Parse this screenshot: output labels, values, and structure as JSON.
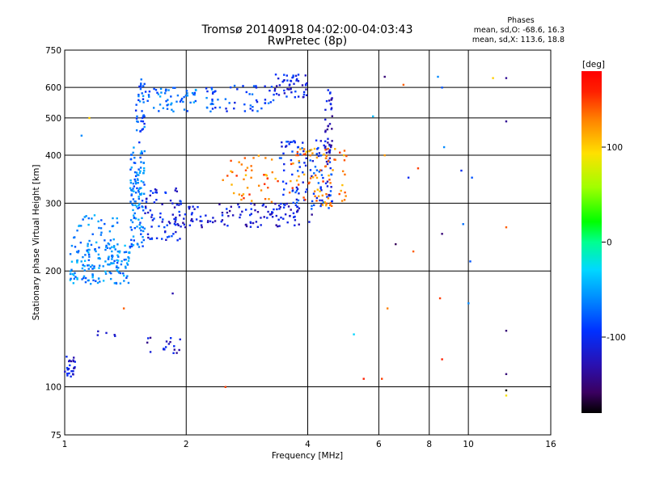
{
  "chart_data": {
    "type": "scatter",
    "title": "Tromsø 20140918 04:02:00-04:03:43",
    "subtitle": "RwPretec (8p)",
    "xlabel": "Frequency [MHz]",
    "ylabel": "Stationary phase Virtual Height [km]",
    "x_scale": "log",
    "y_scale": "log",
    "xlim": [
      1,
      16
    ],
    "ylim": [
      75,
      750
    ],
    "x_ticks": [
      1,
      2,
      4,
      6,
      8,
      10,
      16
    ],
    "y_ticks": [
      75,
      100,
      200,
      300,
      400,
      500,
      600,
      750
    ],
    "grid": true,
    "phase_stats": {
      "heading": "Phases",
      "line_o": "mean, sd,O: -68.6, 16.3",
      "line_x": "mean, sd,X: 113.6, 18.8"
    },
    "colorbar": {
      "label": "[deg]",
      "range": [
        -180,
        180
      ],
      "ticks": [
        100,
        0,
        -100
      ]
    },
    "trace_groups": [
      {
        "x_range": [
          1.0,
          1.06
        ],
        "y_range": [
          105,
          122
        ],
        "phase": -110,
        "count": 25
      },
      {
        "x_range": [
          1.03,
          1.45
        ],
        "y_range": [
          185,
          235
        ],
        "phase": -60,
        "count": 150
      },
      {
        "x_range": [
          1.05,
          1.35
        ],
        "y_range": [
          230,
          280
        ],
        "phase": -65,
        "count": 40
      },
      {
        "x_range": [
          1.45,
          1.58
        ],
        "y_range": [
          230,
          420
        ],
        "phase": -65,
        "count": 120
      },
      {
        "x_range": [
          1.5,
          1.58
        ],
        "y_range": [
          420,
          640
        ],
        "phase": -80,
        "count": 35
      },
      {
        "x_range": [
          1.58,
          1.95
        ],
        "y_range": [
          240,
          330
        ],
        "phase": -105,
        "count": 70
      },
      {
        "x_range": [
          1.55,
          2.25
        ],
        "y_range": [
          520,
          600
        ],
        "phase": -70,
        "count": 60
      },
      {
        "x_range": [
          2.2,
          3.3
        ],
        "y_range": [
          520,
          610
        ],
        "phase": -85,
        "count": 55
      },
      {
        "x_range": [
          3.3,
          4.0
        ],
        "y_range": [
          565,
          650
        ],
        "phase": -105,
        "count": 50
      },
      {
        "x_range": [
          1.9,
          4.1
        ],
        "y_range": [
          260,
          300
        ],
        "phase": -115,
        "count": 120
      },
      {
        "x_range": [
          3.4,
          4.6
        ],
        "y_range": [
          290,
          440
        ],
        "phase": -95,
        "count": 110
      },
      {
        "x_range": [
          4.4,
          4.6
        ],
        "y_range": [
          300,
          600
        ],
        "phase": -120,
        "count": 40
      },
      {
        "x_range": [
          3.6,
          5.0
        ],
        "y_range": [
          295,
          420
        ],
        "phase": 130,
        "count": 80
      },
      {
        "x_range": [
          2.45,
          3.4
        ],
        "y_range": [
          300,
          400
        ],
        "phase": 130,
        "count": 45
      },
      {
        "x_range": [
          1.6,
          1.95
        ],
        "y_range": [
          122,
          135
        ],
        "phase": -120,
        "count": 18
      },
      {
        "x_range": [
          1.2,
          1.35
        ],
        "y_range": [
          135,
          140
        ],
        "phase": -100,
        "count": 5
      }
    ],
    "sparse_points": [
      {
        "x": 6.2,
        "y": 640,
        "phase": -150
      },
      {
        "x": 6.9,
        "y": 610,
        "phase": 140
      },
      {
        "x": 8.4,
        "y": 640,
        "phase": -60
      },
      {
        "x": 8.6,
        "y": 600,
        "phase": -80
      },
      {
        "x": 11.5,
        "y": 635,
        "phase": 100
      },
      {
        "x": 12.4,
        "y": 635,
        "phase": -140
      },
      {
        "x": 5.8,
        "y": 505,
        "phase": -40
      },
      {
        "x": 6.2,
        "y": 400,
        "phase": 120
      },
      {
        "x": 7.1,
        "y": 350,
        "phase": -100
      },
      {
        "x": 7.5,
        "y": 370,
        "phase": 150
      },
      {
        "x": 8.7,
        "y": 420,
        "phase": -60
      },
      {
        "x": 9.6,
        "y": 365,
        "phase": -100
      },
      {
        "x": 10.2,
        "y": 350,
        "phase": -80
      },
      {
        "x": 12.4,
        "y": 490,
        "phase": -140
      },
      {
        "x": 12.4,
        "y": 260,
        "phase": 140
      },
      {
        "x": 9.7,
        "y": 265,
        "phase": -70
      },
      {
        "x": 8.6,
        "y": 250,
        "phase": -150
      },
      {
        "x": 6.6,
        "y": 235,
        "phase": -160
      },
      {
        "x": 7.3,
        "y": 225,
        "phase": 140
      },
      {
        "x": 10.1,
        "y": 212,
        "phase": -80
      },
      {
        "x": 8.5,
        "y": 170,
        "phase": 150
      },
      {
        "x": 10.0,
        "y": 165,
        "phase": -60
      },
      {
        "x": 6.3,
        "y": 160,
        "phase": 130
      },
      {
        "x": 12.4,
        "y": 140,
        "phase": -150
      },
      {
        "x": 8.6,
        "y": 118,
        "phase": 160
      },
      {
        "x": 12.4,
        "y": 108,
        "phase": -150
      },
      {
        "x": 12.4,
        "y": 98,
        "phase": -180
      },
      {
        "x": 12.4,
        "y": 95,
        "phase": 90
      },
      {
        "x": 5.5,
        "y": 105,
        "phase": 160
      },
      {
        "x": 6.1,
        "y": 105,
        "phase": 150
      },
      {
        "x": 5.2,
        "y": 137,
        "phase": -30
      },
      {
        "x": 2.5,
        "y": 100,
        "phase": 150
      },
      {
        "x": 1.85,
        "y": 175,
        "phase": -130
      },
      {
        "x": 1.4,
        "y": 160,
        "phase": 140
      },
      {
        "x": 1.1,
        "y": 450,
        "phase": -60
      },
      {
        "x": 1.15,
        "y": 500,
        "phase": 100
      }
    ]
  }
}
